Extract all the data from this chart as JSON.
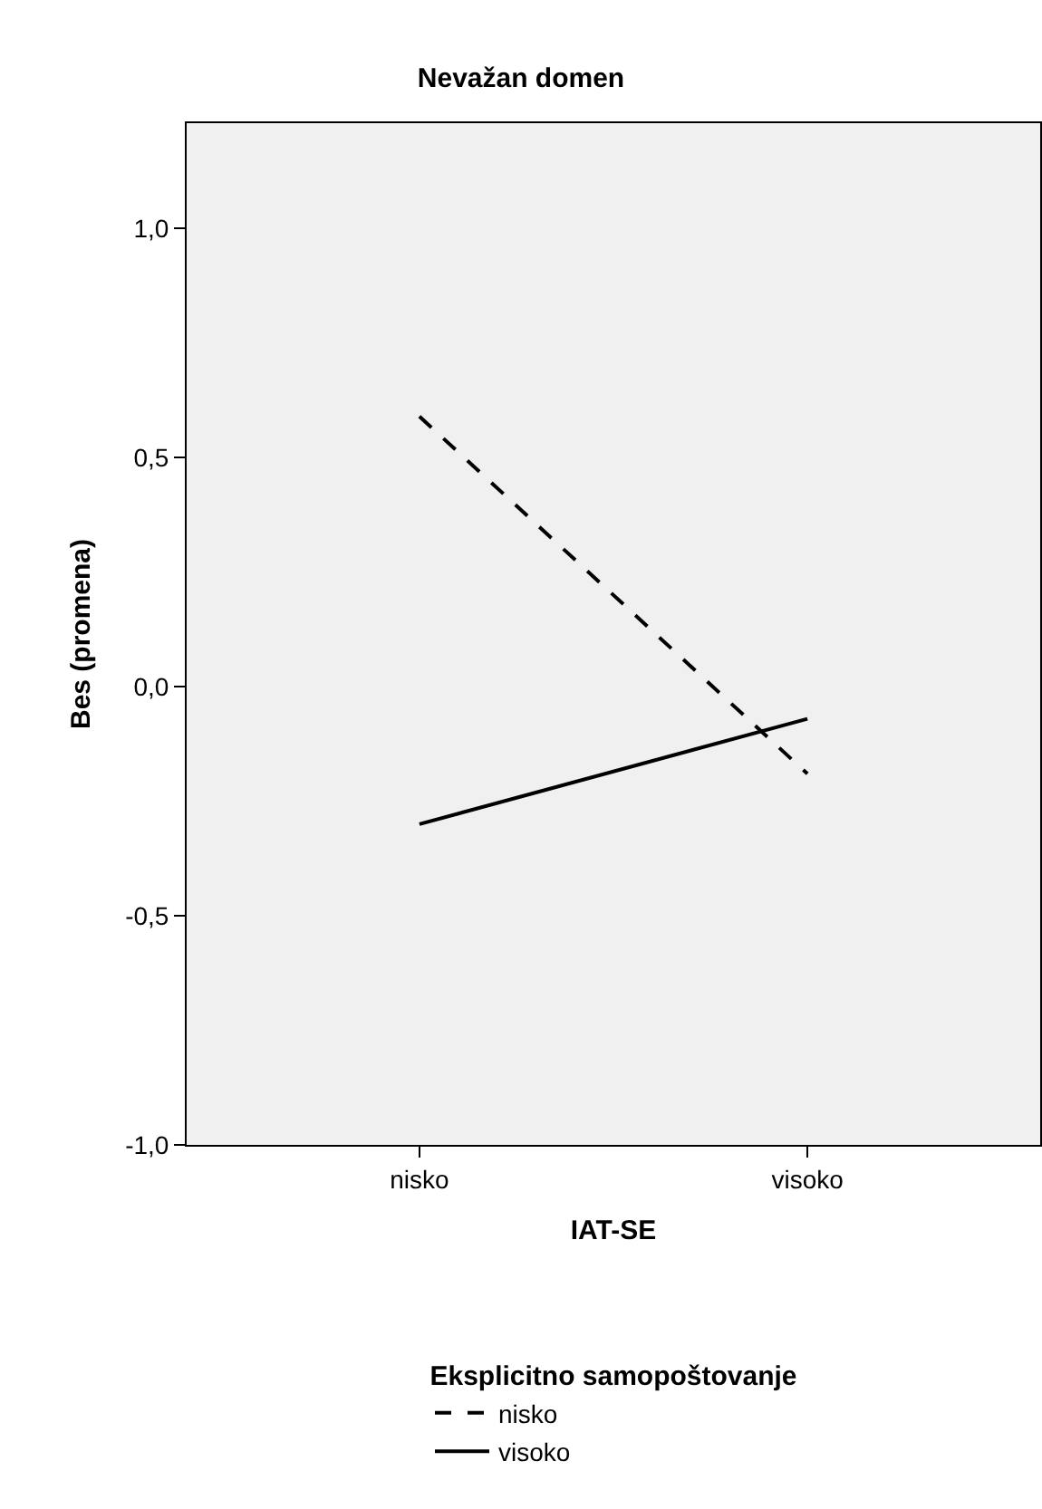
{
  "chart_data": {
    "type": "line",
    "title": "Nevažan domen",
    "xlabel": "IAT-SE",
    "ylabel": "Bes (promena)",
    "legend_title": "Eksplicitno samopoštovanje",
    "categories": [
      "nisko",
      "visoko"
    ],
    "series": [
      {
        "name": "nisko",
        "color": "#000000",
        "values": [
          0.59,
          -0.19
        ],
        "line_style": "dashed"
      },
      {
        "name": "visoko",
        "color": "#000000",
        "values": [
          -0.3,
          -0.07
        ],
        "line_style": "solid"
      }
    ],
    "ylim": [
      -1,
      1.23
    ],
    "yticks": [
      {
        "value": -1,
        "label": "-1,0"
      },
      {
        "value": -0.5,
        "label": "-0,5"
      },
      {
        "value": 0,
        "label": "0,0"
      },
      {
        "value": 0.5,
        "label": "0,5"
      },
      {
        "value": 1,
        "label": "1,0"
      }
    ],
    "grid": false,
    "legend": "bottom",
    "marker": "none"
  }
}
